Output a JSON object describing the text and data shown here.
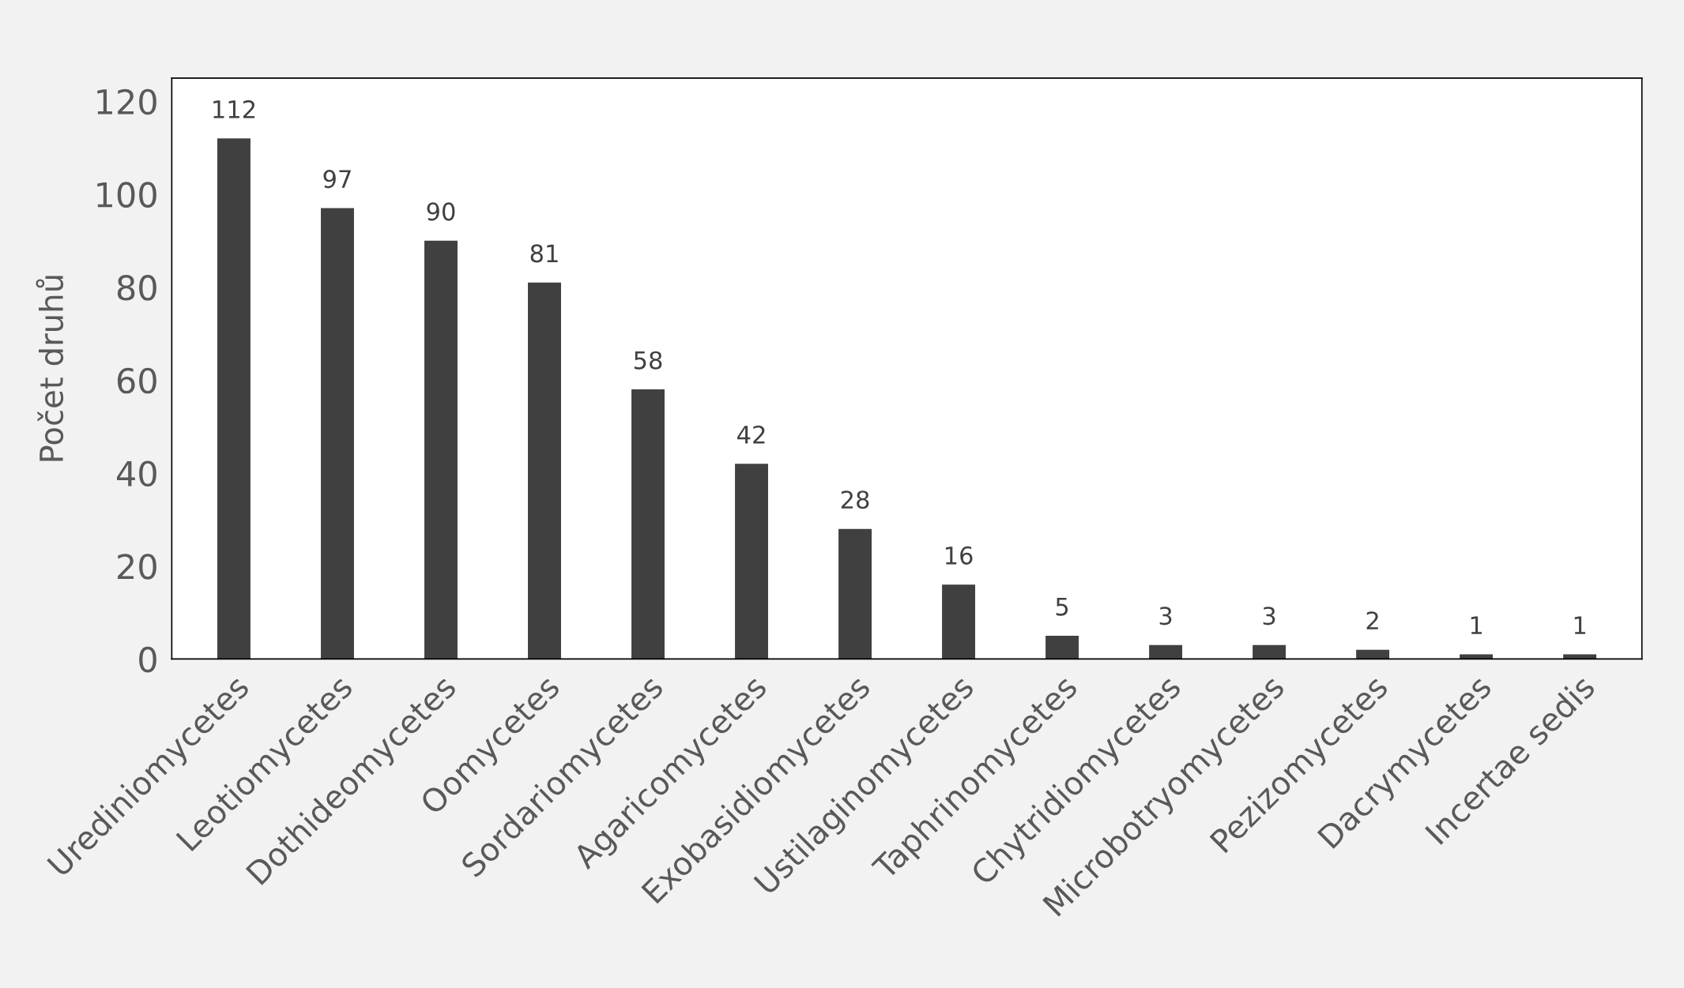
{
  "chart_data": {
    "type": "bar",
    "categories": [
      "Urediniomycetes",
      "Leotiomycetes",
      "Dothideomycetes",
      "Oomycetes",
      "Sordariomycetes",
      "Agaricomycetes",
      "Exobasidiomycetes",
      "Ustilaginomycetes",
      "Taphrinomycetes",
      "Chytridiomycetes",
      "Microbotryomycetes",
      "Pezizomycetes",
      "Dacrymycetes",
      "Incertae sedis"
    ],
    "values": [
      112,
      97,
      90,
      81,
      58,
      42,
      28,
      16,
      5,
      3,
      3,
      2,
      1,
      1
    ],
    "color": "#404040",
    "ylabel": "Počet druhů",
    "ylim": [
      0,
      125
    ],
    "yticks": [
      0,
      20,
      40,
      60,
      80,
      100,
      120
    ],
    "data_labels": true,
    "grid": false,
    "legend": false
  }
}
